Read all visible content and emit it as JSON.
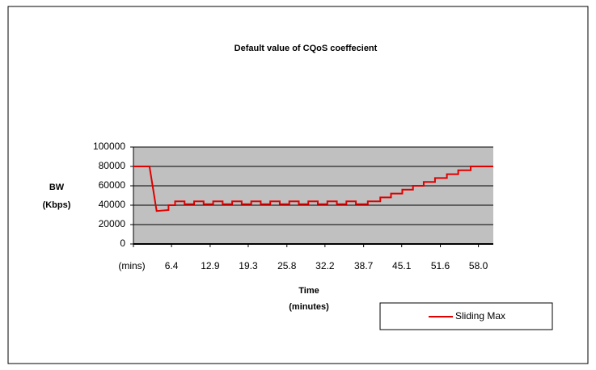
{
  "chart_data": {
    "type": "line",
    "title": "Default value of CQoS coeffecient",
    "y_label": [
      "BW",
      "(Kbps)"
    ],
    "x_label": [
      "Time",
      "(minutes)"
    ],
    "xlim": [
      0,
      60.5
    ],
    "ylim": [
      0,
      100000
    ],
    "xticks": [
      {
        "value": 0,
        "label": "(mins)"
      },
      6.4,
      12.9,
      19.3,
      25.8,
      32.2,
      38.7,
      45.1,
      51.6,
      {
        "value": 58,
        "label": "58.0"
      }
    ],
    "yticks": [
      0,
      20000,
      40000,
      60000,
      80000,
      100000
    ],
    "grid": true,
    "legend": "bottom-right",
    "series": [
      {
        "name": "Sliding Max",
        "color": "#e00000",
        "x": [
          0,
          2.7,
          3.9,
          5.9,
          5.9,
          7.0,
          7.0,
          8.6,
          8.6,
          10.2,
          10.2,
          11.8,
          11.8,
          13.4,
          13.4,
          15.0,
          15.0,
          16.6,
          16.6,
          18.2,
          18.2,
          19.8,
          19.8,
          21.4,
          21.4,
          23.0,
          23.0,
          24.6,
          24.6,
          26.2,
          26.2,
          27.8,
          27.8,
          29.4,
          29.4,
          31.0,
          31.0,
          32.6,
          32.6,
          34.2,
          34.2,
          35.8,
          35.8,
          37.4,
          37.4,
          39.4,
          39.4,
          41.5,
          41.5,
          43.3,
          43.3,
          45.2,
          45.2,
          47.0,
          47.0,
          48.8,
          48.8,
          50.7,
          50.7,
          52.7,
          52.7,
          54.6,
          54.6,
          56.7,
          56.7,
          60.5
        ],
        "values": [
          80000,
          80000,
          34000,
          35000,
          40000,
          40000,
          44000,
          44000,
          41000,
          41000,
          44000,
          44000,
          41000,
          41000,
          44000,
          44000,
          41000,
          41000,
          44000,
          44000,
          41000,
          41000,
          44000,
          44000,
          41000,
          41000,
          44000,
          44000,
          41000,
          41000,
          44000,
          44000,
          41000,
          41000,
          44000,
          44000,
          41000,
          41000,
          44000,
          44000,
          41000,
          41000,
          44000,
          44000,
          41000,
          41000,
          44000,
          44000,
          48000,
          48000,
          52000,
          52000,
          56000,
          56000,
          60000,
          60000,
          64000,
          64000,
          68000,
          68000,
          72000,
          72000,
          76000,
          76000,
          80000,
          80000
        ]
      }
    ]
  }
}
